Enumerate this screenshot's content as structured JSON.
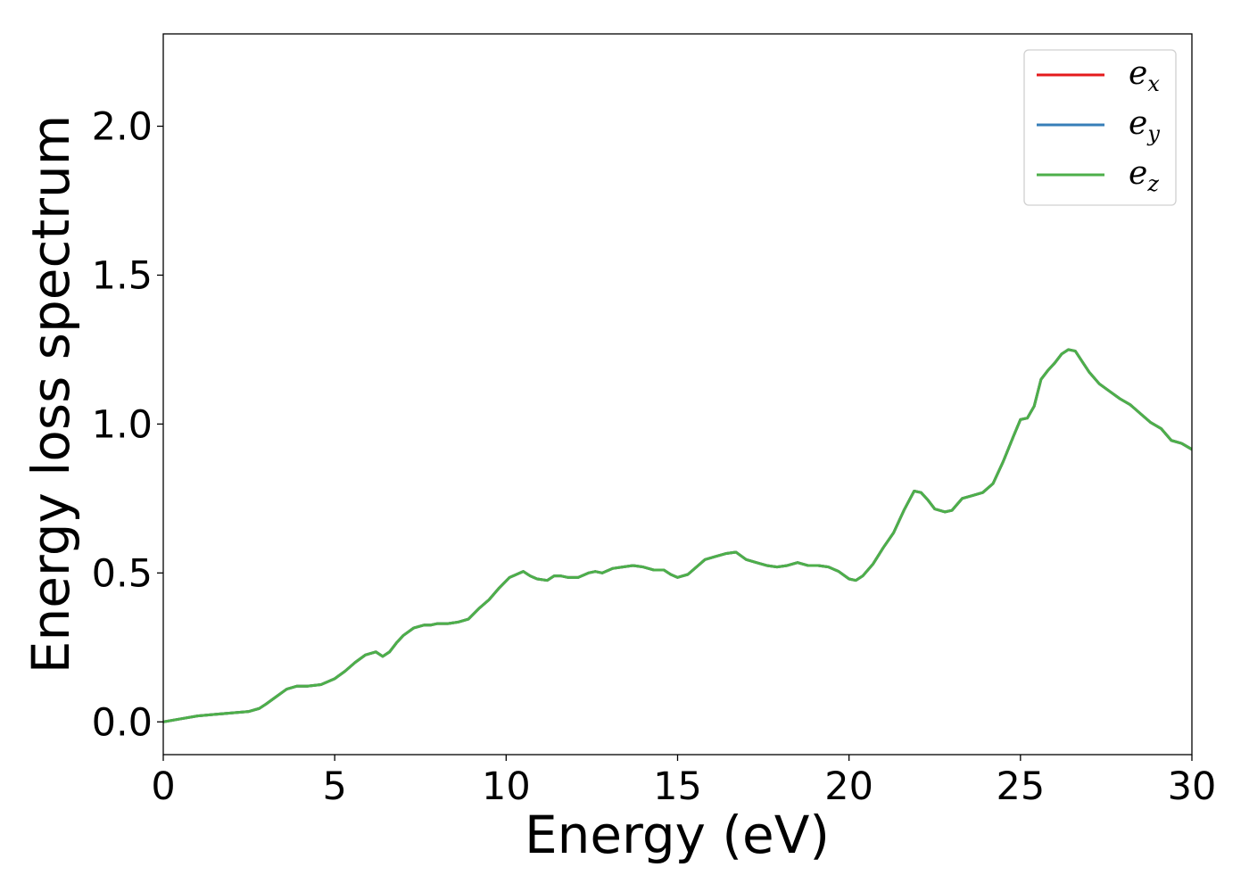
{
  "chart_data": {
    "type": "line",
    "title": "",
    "xlabel": "Energy (eV)",
    "ylabel": "Energy loss spectrum",
    "xlim": [
      0,
      30
    ],
    "ylim": [
      -0.11,
      2.31
    ],
    "xticks": [
      0,
      5,
      10,
      15,
      20,
      25,
      30
    ],
    "xtick_labels": [
      "0",
      "5",
      "10",
      "15",
      "20",
      "25",
      "30"
    ],
    "yticks": [
      0.0,
      0.5,
      1.0,
      1.5,
      2.0
    ],
    "ytick_labels": [
      "0.0",
      "0.5",
      "1.0",
      "1.5",
      "2.0"
    ],
    "grid": false,
    "legend_position": "top-right",
    "series": [
      {
        "name": "e_x",
        "name_base": "e",
        "name_sub": "x",
        "color": "#e41a1c",
        "x": [
          0,
          0.5,
          1,
          1.5,
          2,
          2.5,
          2.8,
          3,
          3.3,
          3.6,
          3.9,
          4.2,
          4.6,
          5,
          5.3,
          5.6,
          5.9,
          6.2,
          6.4,
          6.6,
          6.8,
          7,
          7.3,
          7.6,
          7.8,
          8,
          8.3,
          8.6,
          8.9,
          9.2,
          9.5,
          9.8,
          10.1,
          10.3,
          10.5,
          10.7,
          10.9,
          11.2,
          11.4,
          11.6,
          11.8,
          12.1,
          12.4,
          12.6,
          12.8,
          13.1,
          13.4,
          13.7,
          14,
          14.3,
          14.6,
          14.8,
          15,
          15.3,
          15.6,
          15.8,
          16.1,
          16.4,
          16.7,
          17,
          17.3,
          17.6,
          17.9,
          18.2,
          18.5,
          18.8,
          19.1,
          19.4,
          19.7,
          20,
          20.2,
          20.4,
          20.7,
          21,
          21.3,
          21.6,
          21.9,
          22.1,
          22.3,
          22.5,
          22.8,
          23,
          23.3,
          23.6,
          23.9,
          24.2,
          24.5,
          24.8,
          25,
          25.2,
          25.4,
          25.6,
          25.8,
          26,
          26.2,
          26.4,
          26.6,
          26.8,
          27,
          27.3,
          27.6,
          27.9,
          28.2,
          28.5,
          28.8,
          29.1,
          29.4,
          29.7,
          30
        ],
        "y": [
          0.0,
          0.01,
          0.02,
          0.025,
          0.03,
          0.035,
          0.045,
          0.06,
          0.085,
          0.11,
          0.12,
          0.12,
          0.125,
          0.145,
          0.17,
          0.2,
          0.225,
          0.235,
          0.22,
          0.235,
          0.265,
          0.29,
          0.315,
          0.325,
          0.325,
          0.33,
          0.33,
          0.335,
          0.345,
          0.38,
          0.41,
          0.45,
          0.485,
          0.495,
          0.505,
          0.49,
          0.48,
          0.475,
          0.49,
          0.49,
          0.485,
          0.485,
          0.5,
          0.505,
          0.5,
          0.515,
          0.52,
          0.525,
          0.52,
          0.51,
          0.51,
          0.495,
          0.485,
          0.495,
          0.525,
          0.545,
          0.555,
          0.565,
          0.57,
          0.545,
          0.535,
          0.525,
          0.52,
          0.525,
          0.535,
          0.525,
          0.525,
          0.52,
          0.505,
          0.48,
          0.475,
          0.49,
          0.53,
          0.585,
          0.635,
          0.71,
          0.775,
          0.77,
          0.745,
          0.715,
          0.705,
          0.71,
          0.75,
          0.76,
          0.77,
          0.8,
          0.875,
          0.96,
          1.015,
          1.02,
          1.06,
          1.15,
          1.18,
          1.205,
          1.235,
          1.25,
          1.245,
          1.21,
          1.175,
          1.135,
          1.11,
          1.085,
          1.065,
          1.035,
          1.005,
          0.985,
          0.945,
          0.935,
          0.915
        ]
      },
      {
        "name": "e_y",
        "name_base": "e",
        "name_sub": "y",
        "color": "#377eb8",
        "x": [
          0,
          0.5,
          1,
          1.5,
          2,
          2.5,
          2.8,
          3,
          3.3,
          3.6,
          3.9,
          4.2,
          4.6,
          5,
          5.3,
          5.6,
          5.9,
          6.2,
          6.4,
          6.6,
          6.8,
          7,
          7.3,
          7.6,
          7.8,
          8,
          8.3,
          8.6,
          8.9,
          9.2,
          9.5,
          9.8,
          10.1,
          10.3,
          10.5,
          10.7,
          10.9,
          11.2,
          11.4,
          11.6,
          11.8,
          12.1,
          12.4,
          12.6,
          12.8,
          13.1,
          13.4,
          13.7,
          14,
          14.3,
          14.6,
          14.8,
          15,
          15.3,
          15.6,
          15.8,
          16.1,
          16.4,
          16.7,
          17,
          17.3,
          17.6,
          17.9,
          18.2,
          18.5,
          18.8,
          19.1,
          19.4,
          19.7,
          20,
          20.2,
          20.4,
          20.7,
          21,
          21.3,
          21.6,
          21.9,
          22.1,
          22.3,
          22.5,
          22.8,
          23,
          23.3,
          23.6,
          23.9,
          24.2,
          24.5,
          24.8,
          25,
          25.2,
          25.4,
          25.6,
          25.8,
          26,
          26.2,
          26.4,
          26.6,
          26.8,
          27,
          27.3,
          27.6,
          27.9,
          28.2,
          28.5,
          28.8,
          29.1,
          29.4,
          29.7,
          30
        ],
        "y": [
          0.0,
          0.01,
          0.02,
          0.025,
          0.03,
          0.035,
          0.045,
          0.06,
          0.085,
          0.11,
          0.12,
          0.12,
          0.125,
          0.145,
          0.17,
          0.2,
          0.225,
          0.235,
          0.22,
          0.235,
          0.265,
          0.29,
          0.315,
          0.325,
          0.325,
          0.33,
          0.33,
          0.335,
          0.345,
          0.38,
          0.41,
          0.45,
          0.485,
          0.495,
          0.505,
          0.49,
          0.48,
          0.475,
          0.49,
          0.49,
          0.485,
          0.485,
          0.5,
          0.505,
          0.5,
          0.515,
          0.52,
          0.525,
          0.52,
          0.51,
          0.51,
          0.495,
          0.485,
          0.495,
          0.525,
          0.545,
          0.555,
          0.565,
          0.57,
          0.545,
          0.535,
          0.525,
          0.52,
          0.525,
          0.535,
          0.525,
          0.525,
          0.52,
          0.505,
          0.48,
          0.475,
          0.49,
          0.53,
          0.585,
          0.635,
          0.71,
          0.775,
          0.77,
          0.745,
          0.715,
          0.705,
          0.71,
          0.75,
          0.76,
          0.77,
          0.8,
          0.875,
          0.96,
          1.015,
          1.02,
          1.06,
          1.15,
          1.18,
          1.205,
          1.235,
          1.25,
          1.245,
          1.21,
          1.175,
          1.135,
          1.11,
          1.085,
          1.065,
          1.035,
          1.005,
          0.985,
          0.945,
          0.935,
          0.915
        ]
      },
      {
        "name": "e_z",
        "name_base": "e",
        "name_sub": "z",
        "color": "#4daf4a",
        "x": [
          0,
          0.5,
          1,
          1.5,
          2,
          2.5,
          2.8,
          3,
          3.3,
          3.6,
          3.9,
          4.2,
          4.6,
          5,
          5.3,
          5.6,
          5.9,
          6.2,
          6.4,
          6.6,
          6.8,
          7,
          7.3,
          7.6,
          7.8,
          8,
          8.3,
          8.6,
          8.9,
          9.2,
          9.5,
          9.8,
          10.1,
          10.3,
          10.5,
          10.7,
          10.9,
          11.2,
          11.4,
          11.6,
          11.8,
          12.1,
          12.4,
          12.6,
          12.8,
          13.1,
          13.4,
          13.7,
          14,
          14.3,
          14.6,
          14.8,
          15,
          15.3,
          15.6,
          15.8,
          16.1,
          16.4,
          16.7,
          17,
          17.3,
          17.6,
          17.9,
          18.2,
          18.5,
          18.8,
          19.1,
          19.4,
          19.7,
          20,
          20.2,
          20.4,
          20.7,
          21,
          21.3,
          21.6,
          21.9,
          22.1,
          22.3,
          22.5,
          22.8,
          23,
          23.3,
          23.6,
          23.9,
          24.2,
          24.5,
          24.8,
          25,
          25.2,
          25.4,
          25.6,
          25.8,
          26,
          26.2,
          26.4,
          26.6,
          26.8,
          27,
          27.3,
          27.6,
          27.9,
          28.2,
          28.5,
          28.8,
          29.1,
          29.4,
          29.7,
          30
        ],
        "y": [
          0.0,
          0.01,
          0.02,
          0.025,
          0.03,
          0.035,
          0.045,
          0.06,
          0.085,
          0.11,
          0.12,
          0.12,
          0.125,
          0.145,
          0.17,
          0.2,
          0.225,
          0.235,
          0.22,
          0.235,
          0.265,
          0.29,
          0.315,
          0.325,
          0.325,
          0.33,
          0.33,
          0.335,
          0.345,
          0.38,
          0.41,
          0.45,
          0.485,
          0.495,
          0.505,
          0.49,
          0.48,
          0.475,
          0.49,
          0.49,
          0.485,
          0.485,
          0.5,
          0.505,
          0.5,
          0.515,
          0.52,
          0.525,
          0.52,
          0.51,
          0.51,
          0.495,
          0.485,
          0.495,
          0.525,
          0.545,
          0.555,
          0.565,
          0.57,
          0.545,
          0.535,
          0.525,
          0.52,
          0.525,
          0.535,
          0.525,
          0.525,
          0.52,
          0.505,
          0.48,
          0.475,
          0.49,
          0.53,
          0.585,
          0.635,
          0.71,
          0.775,
          0.77,
          0.745,
          0.715,
          0.705,
          0.71,
          0.75,
          0.76,
          0.77,
          0.8,
          0.875,
          0.96,
          1.015,
          1.02,
          1.06,
          1.15,
          1.18,
          1.205,
          1.235,
          1.25,
          1.245,
          1.21,
          1.175,
          1.135,
          1.11,
          1.085,
          1.065,
          1.035,
          1.005,
          0.985,
          0.945,
          0.935,
          0.915
        ]
      }
    ]
  }
}
